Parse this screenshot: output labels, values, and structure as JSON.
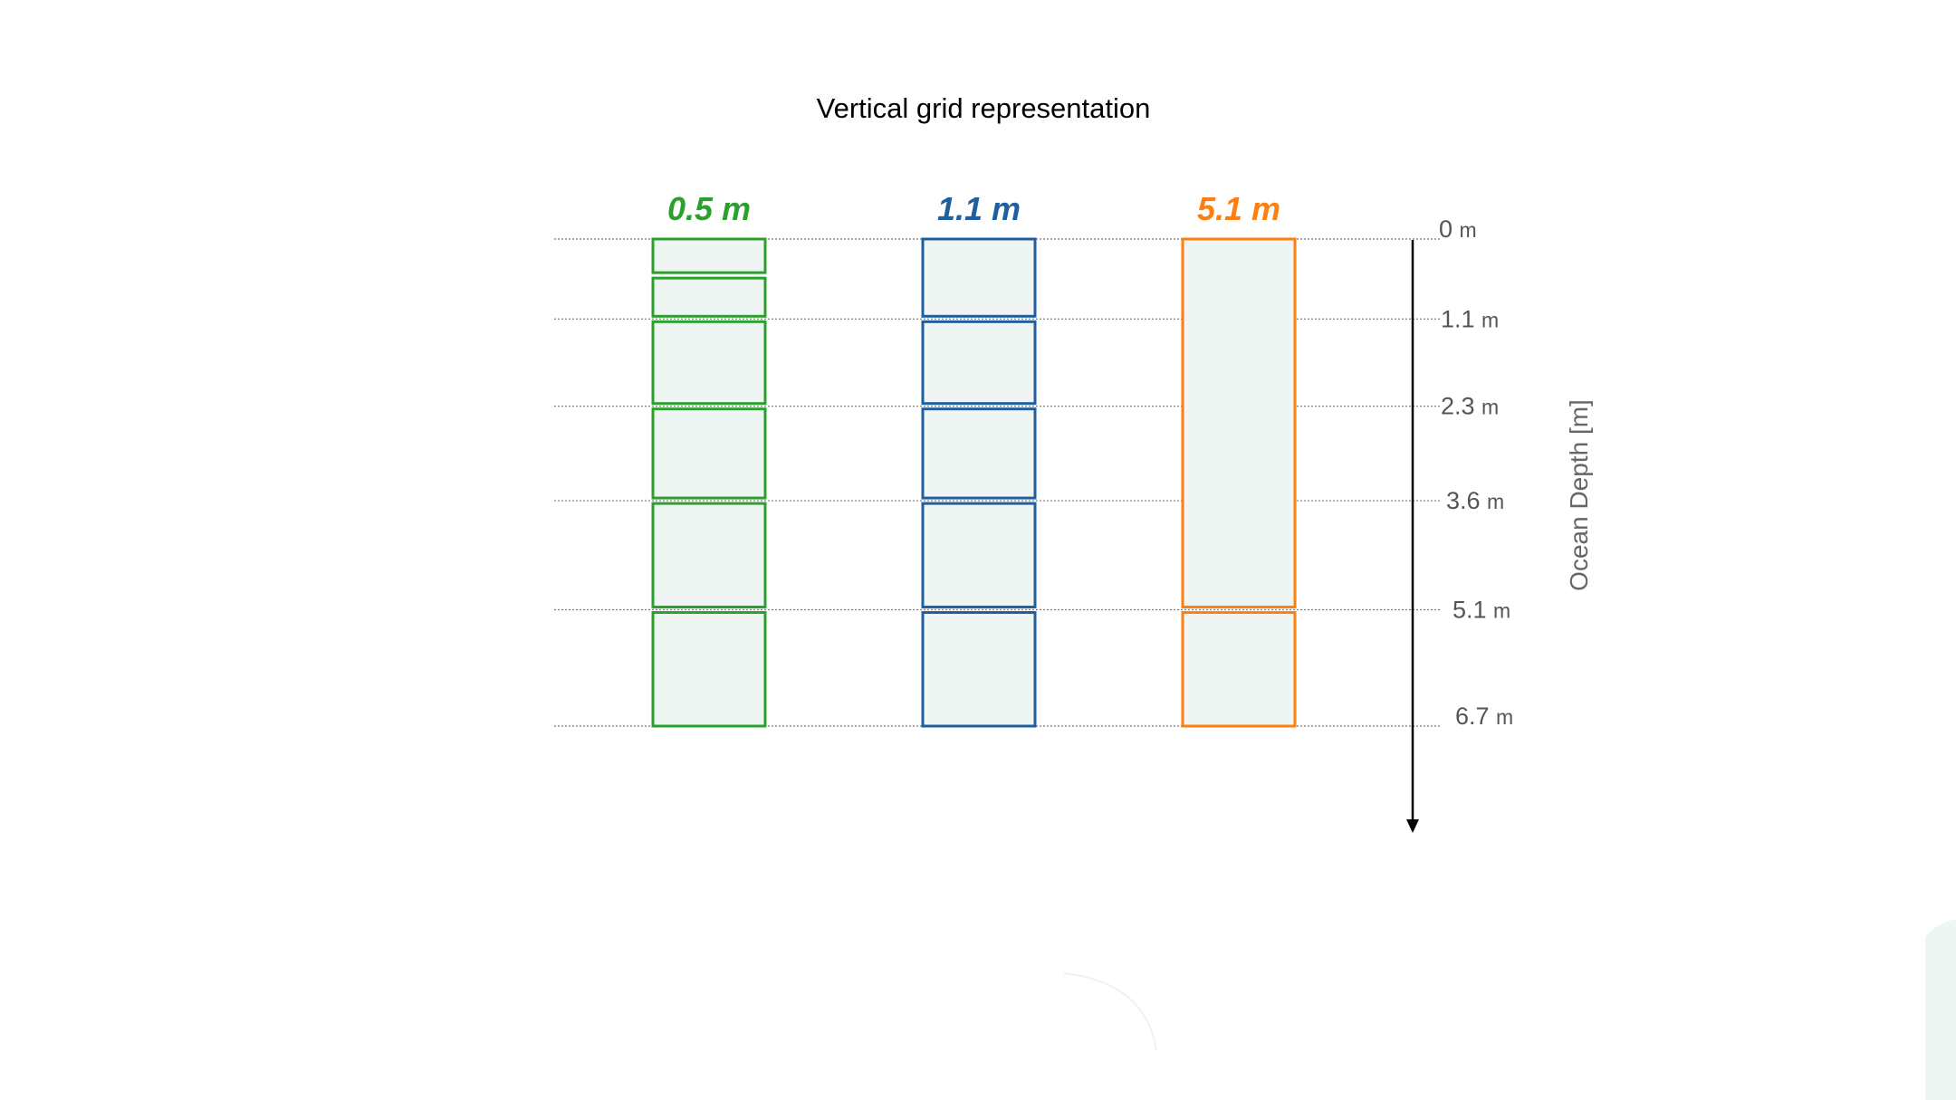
{
  "title": "Vertical grid representation",
  "axis_label": "Ocean Depth [m]",
  "colors": {
    "green": "#2ca02c",
    "blue": "#1f5f9f",
    "orange": "#ff7f0e",
    "cell_fill": "#eef5f3",
    "guide_line": "#777777",
    "axis": "#000000"
  },
  "depth_levels": [
    {
      "num": "0",
      "unit": "m",
      "value": 0
    },
    {
      "num": "1.1",
      "unit": "m",
      "value": 1.1
    },
    {
      "num": "2.3",
      "unit": "m",
      "value": 2.3
    },
    {
      "num": "3.6",
      "unit": "m",
      "value": 3.6
    },
    {
      "num": "5.1",
      "unit": "m",
      "value": 5.1
    },
    {
      "num": "6.7",
      "unit": "m",
      "value": 6.7
    }
  ],
  "columns": [
    {
      "label": "0.5 m",
      "color_key": "green",
      "cells": [
        [
          0,
          0.5
        ],
        [
          0.5,
          1.1
        ],
        [
          1.1,
          2.3
        ],
        [
          2.3,
          3.6
        ],
        [
          3.6,
          5.1
        ],
        [
          5.1,
          6.7
        ]
      ]
    },
    {
      "label": "1.1 m",
      "color_key": "blue",
      "cells": [
        [
          0,
          1.1
        ],
        [
          1.1,
          2.3
        ],
        [
          2.3,
          3.6
        ],
        [
          3.6,
          5.1
        ],
        [
          5.1,
          6.7
        ]
      ]
    },
    {
      "label": "5.1 m",
      "color_key": "orange",
      "cells": [
        [
          0,
          5.1
        ],
        [
          5.1,
          6.7
        ]
      ]
    }
  ]
}
